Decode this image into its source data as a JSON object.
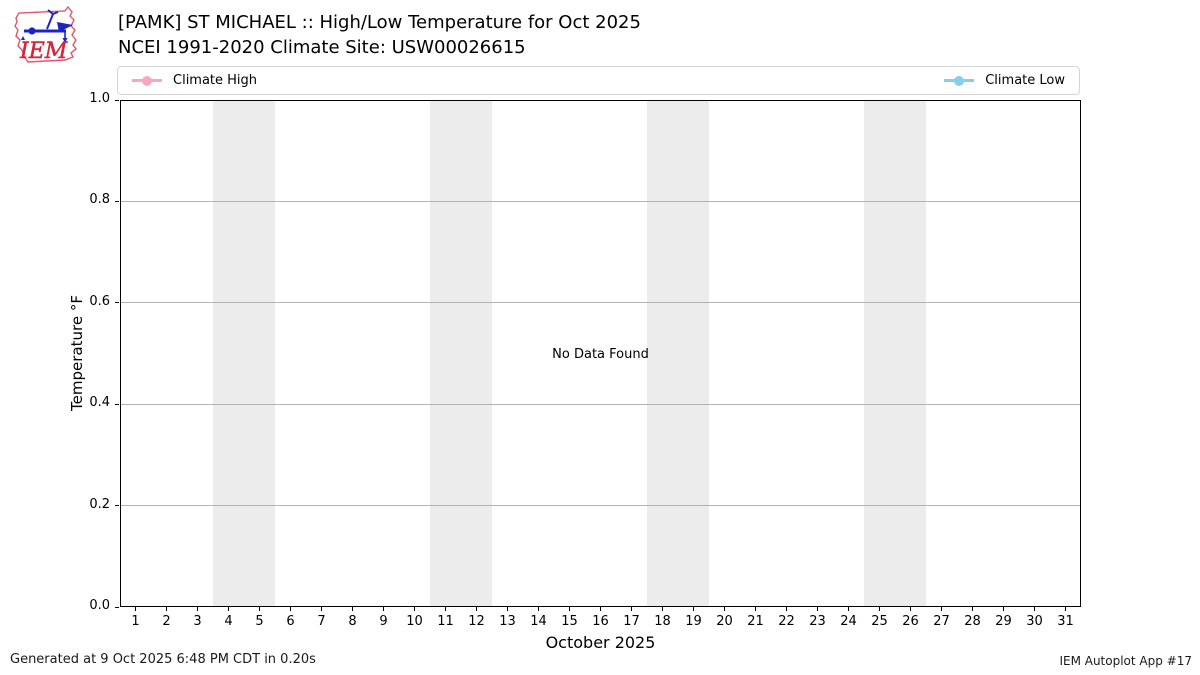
{
  "logo": {
    "label": "IEM"
  },
  "header": {
    "title": "[PAMK] ST MICHAEL :: High/Low Temperature for Oct 2025",
    "subtitle": "NCEI 1991-2020 Climate Site: USW00026615"
  },
  "legend": {
    "items": [
      {
        "label": "Climate High",
        "color": "#F8A8BC"
      },
      {
        "label": "Climate Low",
        "color": "#87CEEB"
      }
    ]
  },
  "chart_data": {
    "type": "line",
    "title": "[PAMK] ST MICHAEL :: High/Low Temperature for Oct 2025",
    "subtitle": "NCEI 1991-2020 Climate Site: USW00026615",
    "xlabel": "October 2025",
    "ylabel": "Temperature °F",
    "xlim": [
      0.5,
      31.5
    ],
    "ylim": [
      0.0,
      1.0
    ],
    "x_ticks": [
      1,
      2,
      3,
      4,
      5,
      6,
      7,
      8,
      9,
      10,
      11,
      12,
      13,
      14,
      15,
      16,
      17,
      18,
      19,
      20,
      21,
      22,
      23,
      24,
      25,
      26,
      27,
      28,
      29,
      30,
      31
    ],
    "y_ticks": [
      0.0,
      0.2,
      0.4,
      0.6,
      0.8,
      1.0
    ],
    "y_tick_labels": [
      "0.0",
      "0.2",
      "0.4",
      "0.6",
      "0.8",
      "1.0"
    ],
    "grid": "horizontal",
    "legend_position": "top-strip",
    "weekend_shading_days": [
      [
        4,
        5
      ],
      [
        11,
        12
      ],
      [
        18,
        19
      ],
      [
        25,
        26
      ]
    ],
    "weekend_shading_color": "#ececec",
    "annotation": "No Data Found",
    "series": [
      {
        "name": "Climate High",
        "color": "#F8A8BC",
        "marker": "circle-line",
        "x": [],
        "values": []
      },
      {
        "name": "Climate Low",
        "color": "#87CEEB",
        "marker": "circle-line",
        "x": [],
        "values": []
      }
    ]
  },
  "footer": {
    "left": "Generated at 9 Oct 2025 6:48 PM CDT in 0.20s",
    "right": "IEM Autoplot App #17"
  }
}
